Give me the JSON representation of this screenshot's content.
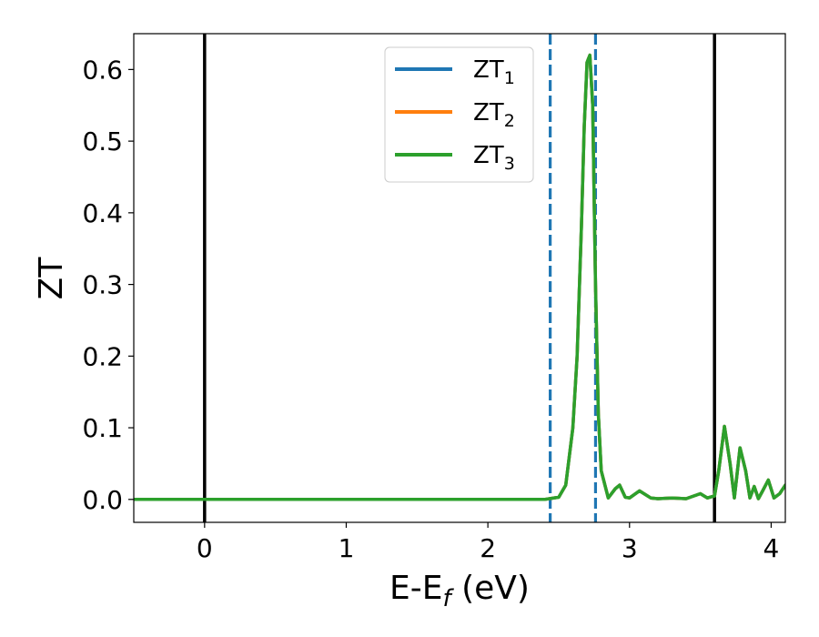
{
  "chart_data": {
    "type": "line",
    "title": "",
    "xlabel": "E-E",
    "xlabel_subscript": "f",
    "xlabel_suffix": " (eV)",
    "ylabel": "ZT",
    "xlim": [
      -0.5,
      4.1
    ],
    "ylim": [
      -0.032,
      0.65
    ],
    "x_ticks": [
      0,
      1,
      2,
      3,
      4
    ],
    "x_tick_labels": [
      "0",
      "1",
      "2",
      "3",
      "4"
    ],
    "y_ticks": [
      0.0,
      0.1,
      0.2,
      0.3,
      0.4,
      0.5,
      0.6
    ],
    "y_tick_labels": [
      "0.0",
      "0.1",
      "0.2",
      "0.3",
      "0.4",
      "0.5",
      "0.6"
    ],
    "grid": false,
    "legend_position": "top-center",
    "vertical_lines": [
      {
        "x": 0.0,
        "style": "solid",
        "color": "#000000"
      },
      {
        "x": 3.6,
        "style": "solid",
        "color": "#000000"
      },
      {
        "x": 2.44,
        "style": "dashed",
        "color": "#1f77b4"
      },
      {
        "x": 2.76,
        "style": "dashed",
        "color": "#1f77b4"
      }
    ],
    "series": [
      {
        "name": "ZT",
        "subscript": "1",
        "color": "#1f77b4",
        "x": [
          -0.5,
          0,
          1,
          2,
          2.4,
          2.5,
          2.55,
          2.6,
          2.63,
          2.66,
          2.68,
          2.7,
          2.72,
          2.74,
          2.76,
          2.78,
          2.8,
          2.85,
          2.9,
          2.93,
          2.97,
          3.0,
          3.07,
          3.15,
          3.2,
          3.3,
          3.4,
          3.5,
          3.55,
          3.6,
          3.63,
          3.67,
          3.71,
          3.74,
          3.78,
          3.82,
          3.85,
          3.88,
          3.91,
          3.94,
          3.98,
          4.02,
          4.06,
          4.1
        ],
        "values": [
          0,
          0,
          0,
          0,
          0,
          0.003,
          0.02,
          0.1,
          0.2,
          0.38,
          0.52,
          0.61,
          0.62,
          0.55,
          0.3,
          0.12,
          0.04,
          0.002,
          0.015,
          0.02,
          0.003,
          0.002,
          0.012,
          0.002,
          0.001,
          0.002,
          0.001,
          0.008,
          0.002,
          0.005,
          0.04,
          0.102,
          0.05,
          0.002,
          0.072,
          0.04,
          0.002,
          0.018,
          0.001,
          0.012,
          0.027,
          0.002,
          0.008,
          0.02
        ]
      },
      {
        "name": "ZT",
        "subscript": "2",
        "color": "#ff7f0e",
        "x": [
          -0.5,
          0,
          1,
          2,
          2.4,
          2.5,
          2.55,
          2.6,
          2.63,
          2.66,
          2.68,
          2.7,
          2.72,
          2.74,
          2.76,
          2.78,
          2.8,
          2.85,
          2.9,
          2.93,
          2.97,
          3.0,
          3.07,
          3.15,
          3.2,
          3.3,
          3.4,
          3.5,
          3.55,
          3.6,
          3.63,
          3.67,
          3.71,
          3.74,
          3.78,
          3.82,
          3.85,
          3.88,
          3.91,
          3.94,
          3.98,
          4.02,
          4.06,
          4.1
        ],
        "values": [
          0,
          0,
          0,
          0,
          0,
          0.003,
          0.02,
          0.1,
          0.2,
          0.38,
          0.52,
          0.61,
          0.62,
          0.55,
          0.3,
          0.12,
          0.04,
          0.002,
          0.015,
          0.02,
          0.003,
          0.002,
          0.012,
          0.002,
          0.001,
          0.002,
          0.001,
          0.008,
          0.002,
          0.005,
          0.04,
          0.102,
          0.05,
          0.002,
          0.072,
          0.04,
          0.002,
          0.018,
          0.001,
          0.012,
          0.027,
          0.002,
          0.008,
          0.02
        ]
      },
      {
        "name": "ZT",
        "subscript": "3",
        "color": "#2ca02c",
        "x": [
          -0.5,
          0,
          1,
          2,
          2.4,
          2.5,
          2.55,
          2.6,
          2.63,
          2.66,
          2.68,
          2.7,
          2.72,
          2.74,
          2.76,
          2.78,
          2.8,
          2.85,
          2.9,
          2.93,
          2.97,
          3.0,
          3.07,
          3.15,
          3.2,
          3.3,
          3.4,
          3.5,
          3.55,
          3.6,
          3.63,
          3.67,
          3.71,
          3.74,
          3.78,
          3.82,
          3.85,
          3.88,
          3.91,
          3.94,
          3.98,
          4.02,
          4.06,
          4.1
        ],
        "values": [
          0,
          0,
          0,
          0,
          0,
          0.003,
          0.02,
          0.1,
          0.2,
          0.38,
          0.52,
          0.61,
          0.62,
          0.55,
          0.3,
          0.12,
          0.04,
          0.002,
          0.015,
          0.02,
          0.003,
          0.002,
          0.012,
          0.002,
          0.001,
          0.002,
          0.001,
          0.008,
          0.002,
          0.005,
          0.04,
          0.102,
          0.05,
          0.002,
          0.072,
          0.04,
          0.002,
          0.018,
          0.001,
          0.012,
          0.027,
          0.002,
          0.008,
          0.02
        ]
      }
    ]
  }
}
